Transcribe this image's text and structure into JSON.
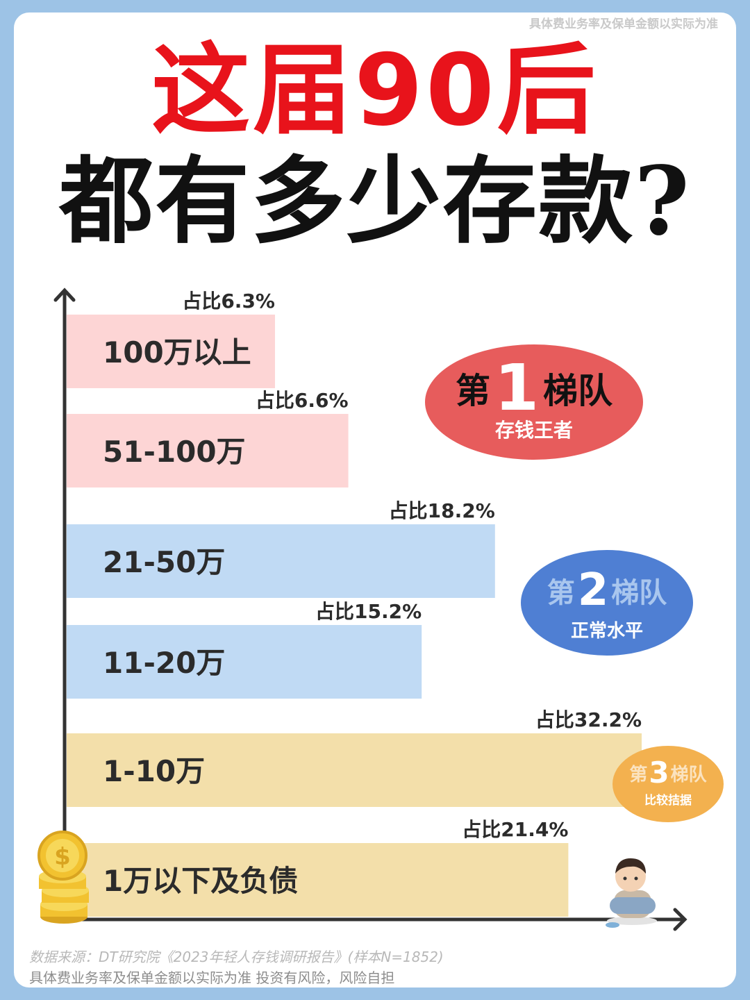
{
  "header": {
    "disclaimer": "具体费业务率及保单金额以实际为准",
    "title_line1": "这届90后",
    "title_line2": "都有多少存款?"
  },
  "tiers": [
    {
      "prefix": "第",
      "number": "1",
      "suffix": "梯队",
      "subtitle": "存钱王者",
      "color": "#e75c5c"
    },
    {
      "prefix": "第",
      "number": "2",
      "suffix": "梯队",
      "subtitle": "正常水平",
      "color": "#4f7fd3"
    },
    {
      "prefix": "第",
      "number": "3",
      "suffix": "梯队",
      "subtitle": "比较拮据",
      "color": "#f3b14f"
    }
  ],
  "footer": {
    "source": "数据来源：DT研究院《2023年轻人存钱调研报告》(样本N=1852)",
    "note": "具体费业务率及保单金额以实际为准  投资有风险，风险自担"
  },
  "chart_data": {
    "type": "bar",
    "orientation": "horizontal",
    "categories": [
      "100万以上",
      "51-100万",
      "21-50万",
      "11-20万",
      "1-10万",
      "1万以下及负债"
    ],
    "values": [
      6.3,
      6.6,
      18.2,
      15.2,
      32.2,
      21.4
    ],
    "value_labels": [
      "占比6.3%",
      "占比6.6%",
      "占比18.2%",
      "占比15.2%",
      "占比32.2%",
      "占比21.4%"
    ],
    "bar_colors": [
      "#fdd5d5",
      "#fdd5d5",
      "#c0daf4",
      "#c0daf4",
      "#f3dfaa",
      "#f3dfaa"
    ],
    "unit": "%"
  }
}
